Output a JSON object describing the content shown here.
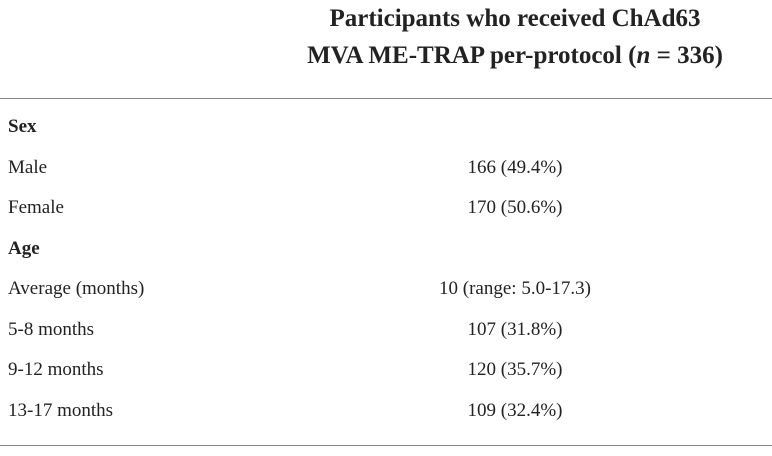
{
  "header": {
    "line1": "Participants who received ChAd63",
    "line2_pre": "MVA ME-TRAP per-protocol (",
    "line2_italic": "n",
    "line2_post": " = 336)"
  },
  "rows": [
    {
      "label": "Sex",
      "section": true
    },
    {
      "label": "Male",
      "value": "166 (49.4%)"
    },
    {
      "label": "Female",
      "value": "170 (50.6%)"
    },
    {
      "label": "Age",
      "section": true
    },
    {
      "label": "Average (months)",
      "value": "10 (range: 5.0-17.3)"
    },
    {
      "label": "5-8 months",
      "value": "107 (31.8%)"
    },
    {
      "label": "9-12 months",
      "value": "120 (35.7%)"
    },
    {
      "label": "13-17 months",
      "value": "109 (32.4%)"
    }
  ]
}
